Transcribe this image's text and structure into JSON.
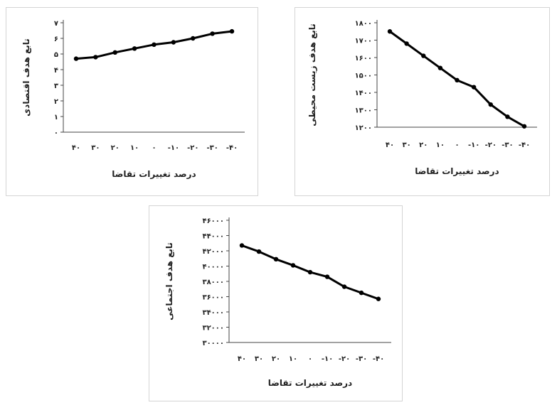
{
  "chart_data": [
    {
      "id": "economic",
      "type": "line",
      "ylabel": "تابع هدف اقتصادی",
      "xlabel": "درصد تغییرات تقاضا",
      "categories": [
        "۴۰",
        "۳۰",
        "۲۰",
        "۱۰",
        "۰",
        "-۱۰",
        "-۲۰",
        "-۳۰",
        "-۴۰"
      ],
      "yticks": [
        "۰",
        "۱",
        "۲",
        "۳",
        "۴",
        "۵",
        "۶",
        "۷"
      ],
      "ylim": [
        0,
        7
      ],
      "grid": false,
      "series": [
        {
          "values": [
            4.7,
            4.8,
            5.1,
            5.35,
            5.6,
            5.75,
            6.0,
            6.3,
            6.45
          ]
        }
      ]
    },
    {
      "id": "environmental",
      "type": "line",
      "ylabel": "تابع هدف زیست محیطی",
      "xlabel": "درصد تغییرات تقاضا",
      "categories": [
        "۴۰",
        "۳۰",
        "۲۰",
        "۱۰",
        "۰",
        "-۱۰",
        "-۲۰",
        "-۳۰",
        "-۴۰"
      ],
      "yticks": [
        "۱۲۰۰",
        "۱۳۰۰",
        "۱۴۰۰",
        "۱۵۰۰",
        "۱۶۰۰",
        "۱۷۰۰",
        "۱۸۰۰"
      ],
      "ylim": [
        1200,
        1800
      ],
      "grid": false,
      "series": [
        {
          "values": [
            1750,
            1680,
            1610,
            1540,
            1470,
            1430,
            1330,
            1260,
            1205
          ]
        }
      ]
    },
    {
      "id": "social",
      "type": "line",
      "ylabel": "تابع هدف اجتماعی",
      "xlabel": "درصد تغییرات تقاضا",
      "categories": [
        "۴۰",
        "۳۰",
        "۲۰",
        "۱۰",
        "۰",
        "-۱۰",
        "-۲۰",
        "-۳۰",
        "-۴۰"
      ],
      "yticks": [
        "۳۰۰۰۰",
        "۳۲۰۰۰",
        "۳۴۰۰۰",
        "۳۶۰۰۰",
        "۳۸۰۰۰",
        "۴۰۰۰۰",
        "۴۲۰۰۰",
        "۴۴۰۰۰",
        "۴۶۰۰۰"
      ],
      "ylim": [
        30000,
        46000
      ],
      "grid": false,
      "series": [
        {
          "values": [
            42700,
            41900,
            40900,
            40100,
            39200,
            38600,
            37300,
            36500,
            35700
          ]
        }
      ]
    }
  ]
}
